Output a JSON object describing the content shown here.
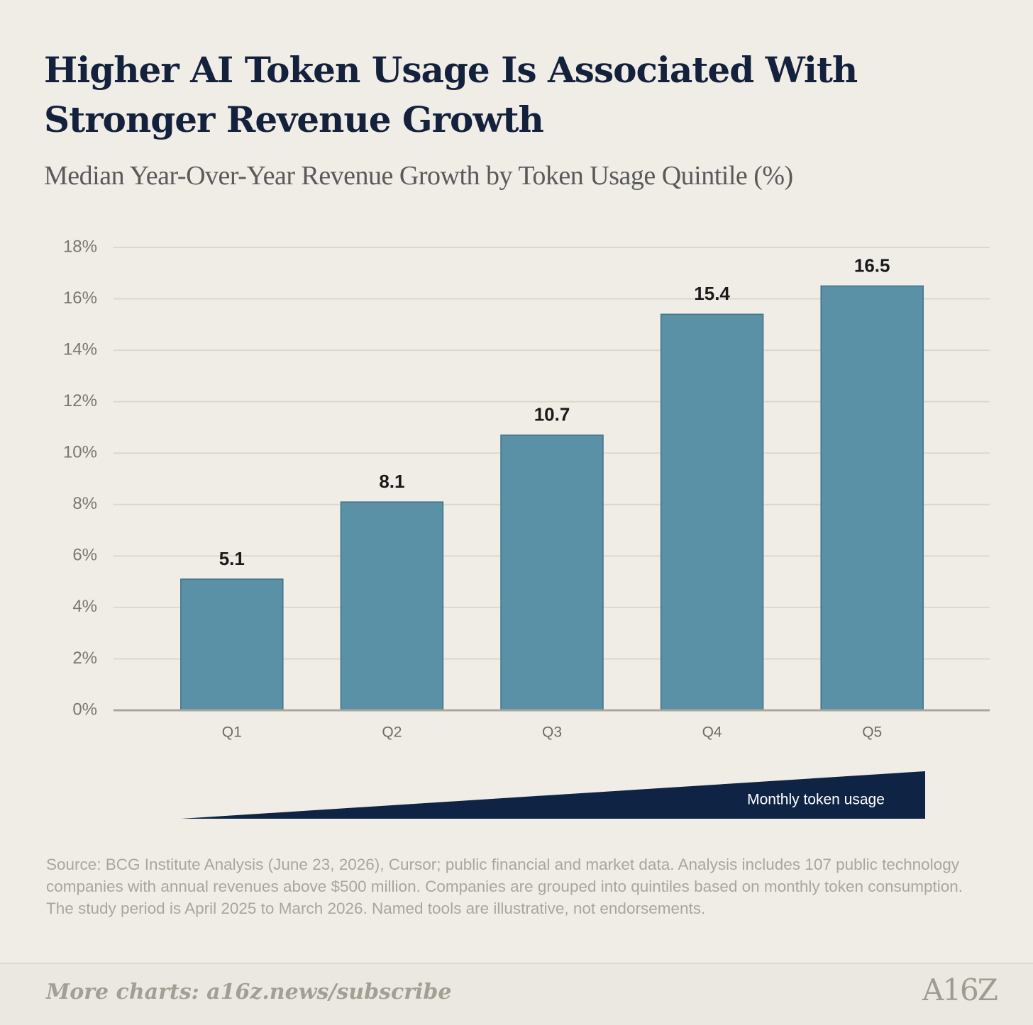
{
  "chart_data": {
    "type": "bar",
    "title": "Higher AI Token Usage Is Associated With Stronger Revenue Growth",
    "subtitle": "Median Year-Over-Year Revenue Growth by Token Usage Quintile (%)",
    "categories": [
      "Q1",
      "Q2",
      "Q3",
      "Q4",
      "Q5"
    ],
    "values": [
      5.1,
      8.1,
      10.7,
      15.4,
      16.5
    ],
    "color": "#5b91a6",
    "ylim": [
      0,
      18
    ],
    "yticks": [
      {
        "value": 0,
        "label": "0%"
      },
      {
        "value": 2,
        "label": "2%"
      },
      {
        "value": 4,
        "label": "4%"
      },
      {
        "value": 6,
        "label": "6%"
      },
      {
        "value": 8,
        "label": "8%"
      },
      {
        "value": 10,
        "label": "10%"
      },
      {
        "value": 12,
        "label": "12%"
      },
      {
        "value": 14,
        "label": "14%"
      },
      {
        "value": 16,
        "label": "16%"
      },
      {
        "value": 18,
        "label": "18%"
      }
    ],
    "grid": true,
    "annotation": "Monthly token usage",
    "source": "Source: BCG Institute Analysis (June 23, 2026), Cursor; public financial and market data. Analysis includes 107 public technology companies with annual revenues above $500 million. Companies are grouped into quintiles based on monthly token consumption. The study period is April 2025 to March 2026. Named tools are illustrative, not endorsements.",
    "footer": "More charts: a16z.news/subscribe",
    "logo": "A16Z"
  }
}
